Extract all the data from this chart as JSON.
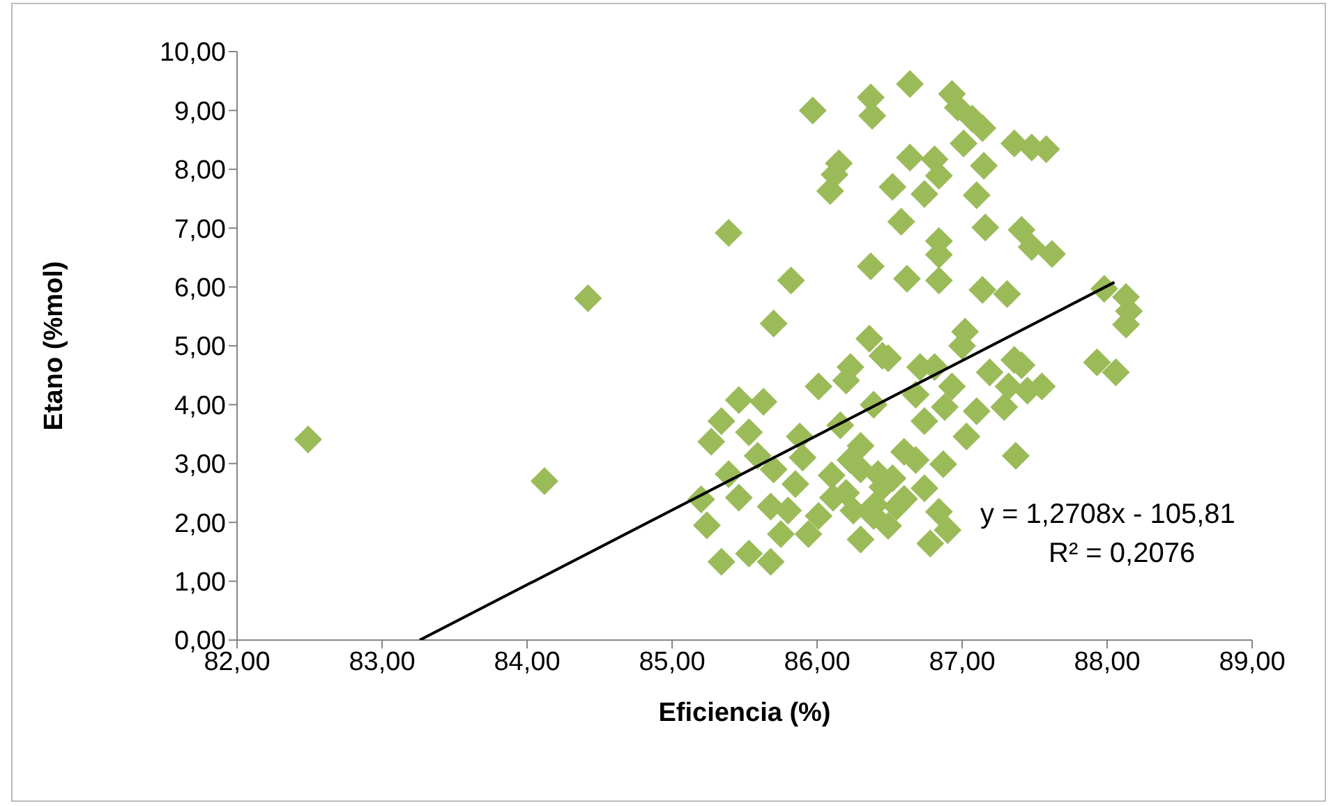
{
  "chart_data": {
    "type": "scatter",
    "xlabel": "Eficiencia (%)",
    "ylabel": "Etano (%mol)",
    "xlim": [
      82,
      89
    ],
    "ylim": [
      0,
      10
    ],
    "xticks": [
      {
        "value": 82,
        "label": "82,00"
      },
      {
        "value": 83,
        "label": "83,00"
      },
      {
        "value": 84,
        "label": "84,00"
      },
      {
        "value": 85,
        "label": "85,00"
      },
      {
        "value": 86,
        "label": "86,00"
      },
      {
        "value": 87,
        "label": "87,00"
      },
      {
        "value": 88,
        "label": "88,00"
      },
      {
        "value": 89,
        "label": "89,00"
      }
    ],
    "yticks": [
      {
        "value": 0,
        "label": "0,00"
      },
      {
        "value": 1,
        "label": "1,00"
      },
      {
        "value": 2,
        "label": "2,00"
      },
      {
        "value": 3,
        "label": "3,00"
      },
      {
        "value": 4,
        "label": "4,00"
      },
      {
        "value": 5,
        "label": "5,00"
      },
      {
        "value": 6,
        "label": "6,00"
      },
      {
        "value": 7,
        "label": "7,00"
      },
      {
        "value": 8,
        "label": "8,00"
      },
      {
        "value": 9,
        "label": "9,00"
      },
      {
        "value": 10,
        "label": "10,00"
      }
    ],
    "grid": false,
    "legend": false,
    "marker": "diamond",
    "annotations": [
      "y = 1,2708x - 105,81",
      "R² = 0,2076"
    ],
    "series": [
      {
        "color": "#9bbb59",
        "x": [
          85.97,
          86.37,
          86.38,
          86.64,
          86.93,
          86.97,
          87.07,
          87.14,
          87.01,
          87.36,
          87.48,
          87.58,
          87.15,
          86.64,
          86.81,
          86.84,
          86.15,
          86.12,
          86.09,
          86.52,
          86.74,
          87.1,
          85.39,
          86.58,
          87.16,
          87.41,
          87.48,
          87.62,
          86.84,
          86.84,
          86.37,
          86.62,
          86.84,
          85.82,
          87.14,
          87.31,
          85.7,
          87.98,
          88.13,
          88.15,
          88.13,
          87.93,
          88.06,
          84.42,
          84.12,
          82.49,
          86.36,
          86.45,
          86.23,
          86.01,
          86.2,
          86.39,
          85.46,
          85.63,
          85.34,
          85.27,
          85.53,
          85.88,
          86.16,
          85.2,
          85.24,
          85.34,
          85.53,
          85.68,
          85.46,
          85.68,
          85.85,
          86.01,
          85.94,
          86.3,
          86.23,
          86.42,
          86.39,
          85.59,
          85.39,
          86.11,
          85.75,
          87.02,
          87.0,
          86.49,
          86.71,
          86.81,
          87.36,
          87.19,
          87.41,
          87.55,
          87.45,
          87.32,
          86.93,
          86.68,
          86.88,
          87.1,
          87.29,
          86.74,
          87.03,
          87.37,
          86.68,
          86.87,
          86.52,
          86.74,
          86.55,
          86.84,
          86.9,
          86.78,
          86.49,
          86.2,
          86.3,
          86.4,
          86.25,
          86.45,
          86.1,
          85.8,
          85.7,
          85.9,
          86.6,
          86.6,
          86.3
        ],
        "values": [
          9.0,
          9.22,
          8.91,
          9.45,
          9.28,
          9.05,
          8.86,
          8.7,
          8.44,
          8.44,
          8.37,
          8.34,
          8.06,
          8.2,
          8.17,
          7.89,
          8.1,
          7.91,
          7.63,
          7.7,
          7.58,
          7.56,
          6.92,
          7.11,
          7.01,
          6.97,
          6.68,
          6.56,
          6.78,
          6.55,
          6.35,
          6.14,
          6.11,
          6.11,
          5.95,
          5.88,
          5.38,
          5.97,
          5.83,
          5.59,
          5.36,
          4.72,
          4.55,
          5.81,
          2.7,
          3.41,
          5.12,
          4.83,
          4.64,
          4.31,
          4.41,
          4.0,
          4.08,
          4.05,
          3.72,
          3.37,
          3.53,
          3.46,
          3.65,
          2.39,
          1.95,
          1.33,
          1.47,
          1.33,
          2.42,
          2.27,
          2.65,
          2.11,
          1.8,
          1.71,
          3.06,
          2.82,
          2.11,
          3.13,
          2.82,
          2.42,
          1.8,
          5.24,
          5.0,
          4.79,
          4.64,
          4.64,
          4.76,
          4.55,
          4.67,
          4.31,
          4.24,
          4.31,
          4.31,
          4.17,
          3.96,
          3.89,
          3.96,
          3.72,
          3.46,
          3.13,
          3.06,
          2.99,
          2.75,
          2.58,
          2.27,
          2.18,
          1.87,
          1.64,
          1.94,
          2.5,
          2.9,
          2.3,
          2.2,
          2.6,
          2.8,
          2.2,
          2.9,
          3.1,
          3.2,
          2.4,
          3.3
        ]
      },
      {
        "type": "line",
        "color": "#000000",
        "marker": "none",
        "x": [
          83.26,
          88.05
        ],
        "values": [
          0,
          6.08
        ]
      }
    ]
  }
}
